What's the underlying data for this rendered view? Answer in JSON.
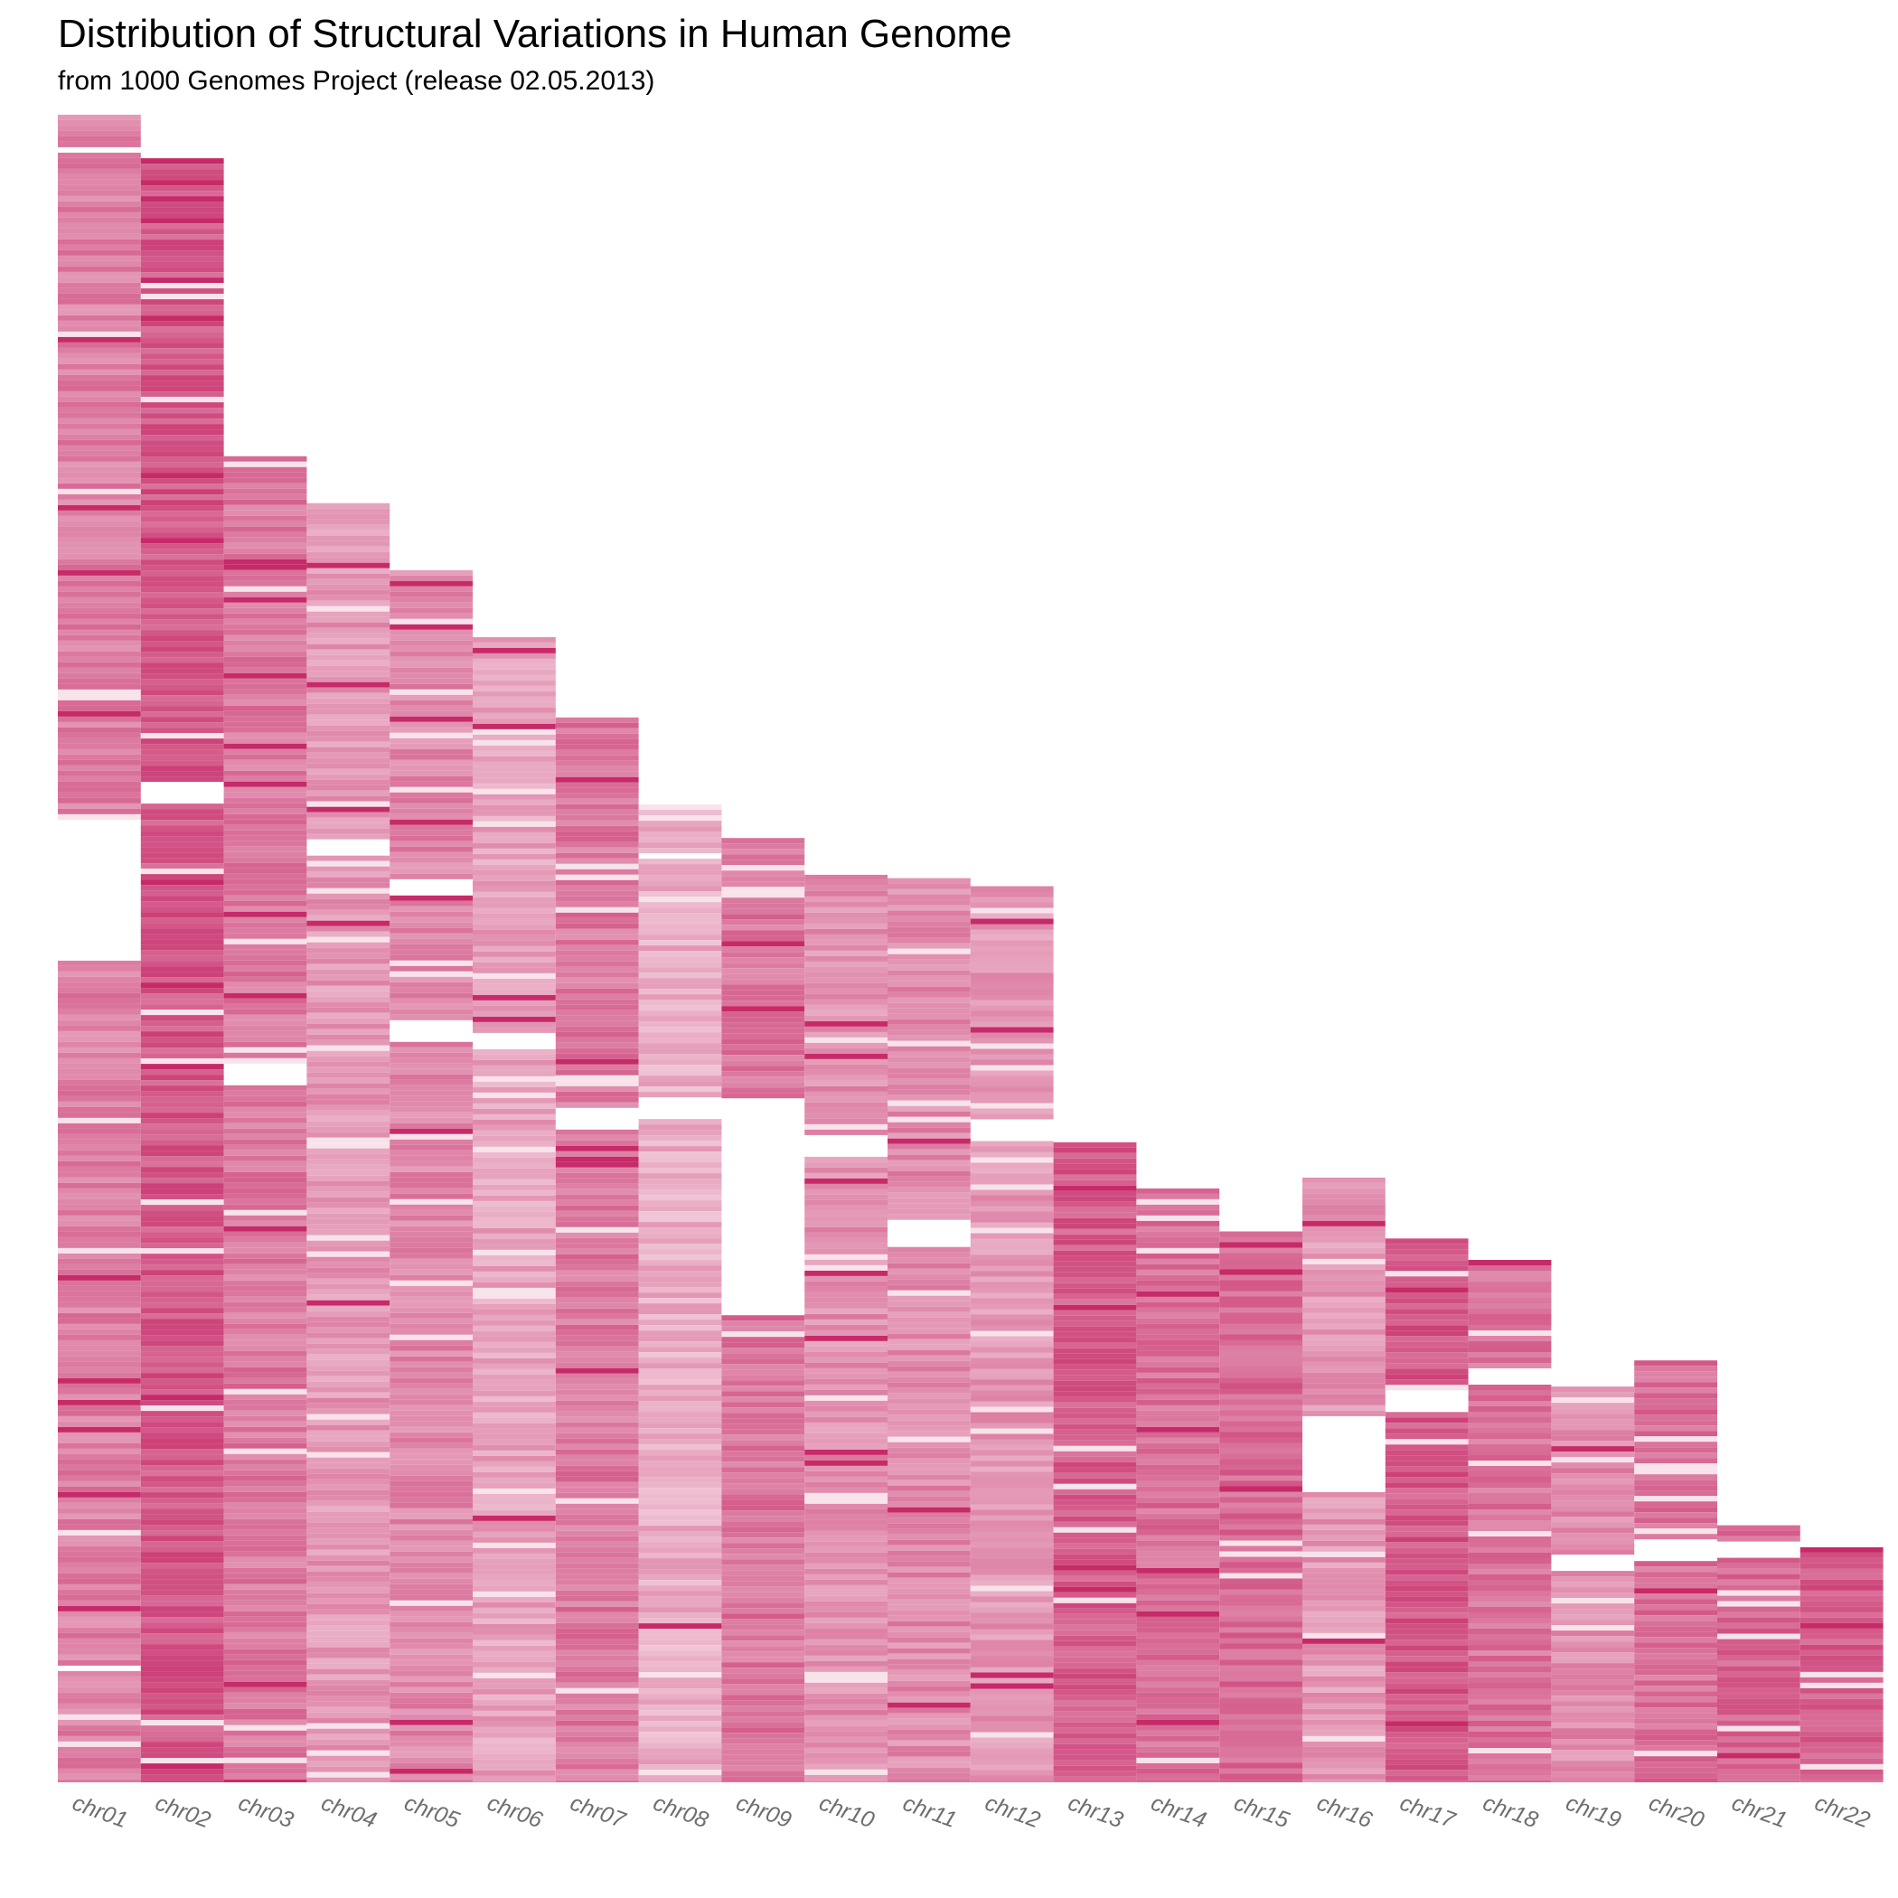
{
  "chart_data": {
    "type": "heatmap",
    "title": "Distribution of Structural Variations in Human Genome",
    "subtitle": "from 1000 Genomes Project (release 02.05.2013)",
    "xlabel": "",
    "ylabel": "",
    "grid": false,
    "legend": "none",
    "color": "#c2185b",
    "categories": [
      "chr01",
      "chr02",
      "chr03",
      "chr04",
      "chr05",
      "chr06",
      "chr07",
      "chr08",
      "chr09",
      "chr10",
      "chr11",
      "chr12",
      "chr13",
      "chr14",
      "chr15",
      "chr16",
      "chr17",
      "chr18",
      "chr19",
      "chr20",
      "chr21",
      "chr22"
    ],
    "series": [
      {
        "chromosome": "chr01",
        "length_mb": 249.0,
        "mean_density": 0.55,
        "gaps_mb": [
          [
            4.8,
            5.5
          ],
          [
            104.5,
            126.0
          ],
          [
            231.0,
            231.6
          ]
        ]
      },
      {
        "chromosome": "chr02",
        "length_mb": 242.5,
        "mean_density": 0.72,
        "gaps_mb": [
          [
            88.4,
            88.9
          ],
          [
            93.0,
            96.0
          ],
          [
            97.3,
            97.8
          ]
        ]
      },
      {
        "chromosome": "chr03",
        "length_mb": 198.0,
        "mean_density": 0.58,
        "gaps_mb": [
          [
            90.5,
            93.5
          ]
        ]
      },
      {
        "chromosome": "chr04",
        "length_mb": 191.0,
        "mean_density": 0.45,
        "gaps_mb": [
          [
            49.5,
            52.5
          ]
        ]
      },
      {
        "chromosome": "chr05",
        "length_mb": 181.0,
        "mean_density": 0.52,
        "gaps_mb": [
          [
            46.0,
            48.0
          ],
          [
            67.0,
            70.0
          ]
        ]
      },
      {
        "chromosome": "chr06",
        "length_mb": 171.0,
        "mean_density": 0.4,
        "gaps_mb": [
          [
            58.5,
            61.5
          ]
        ]
      },
      {
        "chromosome": "chr07",
        "length_mb": 159.0,
        "mean_density": 0.58,
        "gaps_mb": [
          [
            57.7,
            61.0
          ]
        ]
      },
      {
        "chromosome": "chr08",
        "length_mb": 146.0,
        "mean_density": 0.35,
        "gaps_mb": [
          [
            43.5,
            46.5
          ],
          [
            7.0,
            7.5
          ]
        ]
      },
      {
        "chromosome": "chr09",
        "length_mb": 141.0,
        "mean_density": 0.6,
        "gaps_mb": [
          [
            38.5,
            71.0
          ]
        ]
      },
      {
        "chromosome": "chr10",
        "length_mb": 135.5,
        "mean_density": 0.48,
        "gaps_mb": [
          [
            38.5,
            42.0
          ]
        ]
      },
      {
        "chromosome": "chr11",
        "length_mb": 135.0,
        "mean_density": 0.5,
        "gaps_mb": [
          [
            51.0,
            54.5
          ]
        ]
      },
      {
        "chromosome": "chr12",
        "length_mb": 133.8,
        "mean_density": 0.45,
        "gaps_mb": [
          [
            34.5,
            37.5
          ]
        ]
      },
      {
        "chromosome": "chr13",
        "length_mb": 115.0,
        "mean_density": 0.7,
        "gaps_mb": [
          [
            0.0,
            19.0
          ]
        ]
      },
      {
        "chromosome": "chr14",
        "length_mb": 107.3,
        "mean_density": 0.62,
        "gaps_mb": [
          [
            0.0,
            18.5
          ]
        ]
      },
      {
        "chromosome": "chr15",
        "length_mb": 102.5,
        "mean_density": 0.65,
        "gaps_mb": [
          [
            0.0,
            20.0
          ]
        ]
      },
      {
        "chromosome": "chr16",
        "length_mb": 90.3,
        "mean_density": 0.45,
        "gaps_mb": [
          [
            35.5,
            46.5
          ]
        ]
      },
      {
        "chromosome": "chr17",
        "length_mb": 81.2,
        "mean_density": 0.72,
        "gaps_mb": [
          [
            22.5,
            25.5
          ]
        ]
      },
      {
        "chromosome": "chr18",
        "length_mb": 78.0,
        "mean_density": 0.6,
        "gaps_mb": [
          [
            15.5,
            18.5
          ]
        ]
      },
      {
        "chromosome": "chr19",
        "length_mb": 59.1,
        "mean_density": 0.5,
        "gaps_mb": [
          [
            24.5,
            27.5
          ]
        ]
      },
      {
        "chromosome": "chr20",
        "length_mb": 63.0,
        "mean_density": 0.62,
        "gaps_mb": [
          [
            26.5,
            29.8
          ]
        ]
      },
      {
        "chromosome": "chr21",
        "length_mb": 48.1,
        "mean_density": 0.65,
        "gaps_mb": [
          [
            0.0,
            9.5
          ],
          [
            11.5,
            14.5
          ]
        ]
      },
      {
        "chromosome": "chr22",
        "length_mb": 51.3,
        "mean_density": 0.7,
        "gaps_mb": [
          [
            0.0,
            16.0
          ]
        ]
      }
    ]
  }
}
